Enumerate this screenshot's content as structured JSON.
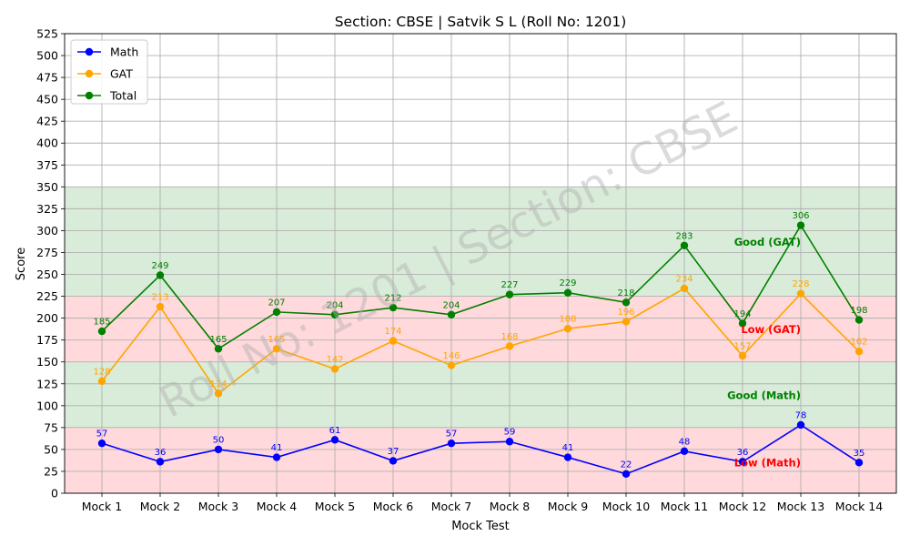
{
  "chart_data": {
    "type": "line",
    "title": "Section: CBSE | Satvik S L (Roll No: 1201)",
    "xlabel": "Mock Test",
    "ylabel": "Score",
    "ylim": [
      0,
      525
    ],
    "ytick_step": 25,
    "grid": true,
    "legend_placement": "top-left",
    "categories": [
      "Mock 1",
      "Mock 2",
      "Mock 3",
      "Mock 4",
      "Mock 5",
      "Mock 6",
      "Mock 7",
      "Mock 8",
      "Mock 9",
      "Mock 10",
      "Mock 11",
      "Mock 12",
      "Mock 13",
      "Mock 14"
    ],
    "series": [
      {
        "name": "Math",
        "color": "#0000ff",
        "values": [
          57,
          36,
          50,
          41,
          61,
          37,
          57,
          59,
          41,
          22,
          48,
          36,
          78,
          35
        ]
      },
      {
        "name": "GAT",
        "color": "#ffa500",
        "values": [
          128,
          213,
          114,
          165,
          142,
          174,
          146,
          168,
          188,
          196,
          234,
          157,
          228,
          162
        ]
      },
      {
        "name": "Total",
        "color": "#008000",
        "values": [
          185,
          249,
          165,
          207,
          204,
          212,
          204,
          227,
          229,
          218,
          283,
          194,
          306,
          198
        ]
      }
    ],
    "bands": [
      {
        "from": 0,
        "to": 75,
        "color": "#ffd9db"
      },
      {
        "from": 75,
        "to": 150,
        "color": "#d9ecd9"
      },
      {
        "from": 150,
        "to": 225,
        "color": "#ffd9db"
      },
      {
        "from": 225,
        "to": 350,
        "color": "#d9ecd9"
      }
    ],
    "annotations": [
      {
        "text": "Good (GAT)",
        "x": 12,
        "y": 287,
        "color": "#008000"
      },
      {
        "text": "Low (GAT)",
        "x": 12,
        "y": 187,
        "color": "#ff0000"
      },
      {
        "text": "Good (Math)",
        "x": 12,
        "y": 112,
        "color": "#008000"
      },
      {
        "text": "Low (Math)",
        "x": 12,
        "y": 35,
        "color": "#ff0000"
      }
    ],
    "watermark": "Roll No: 1201 | Section: CBSE"
  }
}
